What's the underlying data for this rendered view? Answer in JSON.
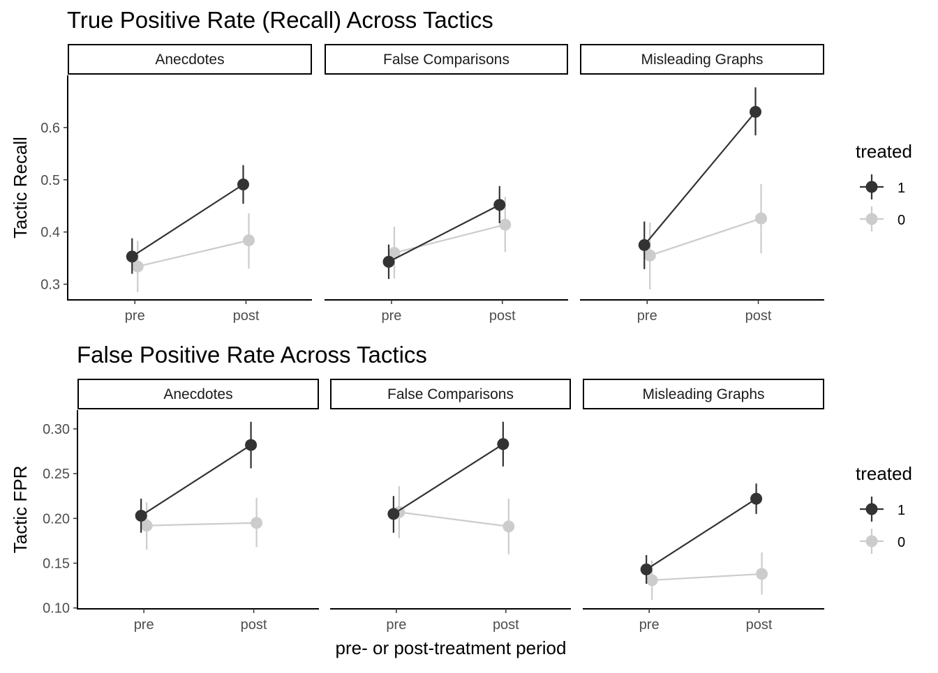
{
  "x_axis_label": "pre- or post-treatment period",
  "chart_data": [
    {
      "type": "line",
      "title": "True Positive Rate (Recall) Across Tactics",
      "ylabel": "Tactic Recall",
      "xlabel": "",
      "categories": [
        "pre",
        "post"
      ],
      "y_ticks": [
        "0.3",
        "0.4",
        "0.5",
        "0.6"
      ],
      "ylim": [
        0.27,
        0.7
      ],
      "legend_title": "treated",
      "legend_position": "right",
      "grid": false,
      "panels": [
        {
          "facet": "Anecdotes",
          "series": [
            {
              "name": "1",
              "color": "#333333",
              "values": [
                0.353,
                0.491
              ],
              "lower": [
                0.32,
                0.454
              ],
              "upper": [
                0.388,
                0.528
              ]
            },
            {
              "name": "0",
              "color": "#cccccc",
              "values": [
                0.334,
                0.384
              ],
              "lower": [
                0.285,
                0.33
              ],
              "upper": [
                0.383,
                0.436
              ]
            }
          ]
        },
        {
          "facet": "False Comparisons",
          "series": [
            {
              "name": "1",
              "color": "#333333",
              "values": [
                0.343,
                0.452
              ],
              "lower": [
                0.31,
                0.417
              ],
              "upper": [
                0.376,
                0.488
              ]
            },
            {
              "name": "0",
              "color": "#cccccc",
              "values": [
                0.36,
                0.414
              ],
              "lower": [
                0.311,
                0.362
              ],
              "upper": [
                0.41,
                0.467
              ]
            }
          ]
        },
        {
          "facet": "Misleading Graphs",
          "series": [
            {
              "name": "1",
              "color": "#333333",
              "values": [
                0.375,
                0.63
              ],
              "lower": [
                0.329,
                0.585
              ],
              "upper": [
                0.42,
                0.677
              ]
            },
            {
              "name": "0",
              "color": "#cccccc",
              "values": [
                0.355,
                0.426
              ],
              "lower": [
                0.29,
                0.359
              ],
              "upper": [
                0.418,
                0.492
              ]
            }
          ]
        }
      ]
    },
    {
      "type": "line",
      "title": "False Positive Rate Across Tactics",
      "ylabel": "Tactic FPR",
      "xlabel": "pre- or post-treatment period",
      "categories": [
        "pre",
        "post"
      ],
      "y_ticks": [
        "0.10",
        "0.15",
        "0.20",
        "0.25",
        "0.30"
      ],
      "ylim": [
        0.099,
        0.321
      ],
      "legend_title": "treated",
      "legend_position": "right",
      "grid": false,
      "panels": [
        {
          "facet": "Anecdotes",
          "series": [
            {
              "name": "1",
              "color": "#333333",
              "values": [
                0.203,
                0.282
              ],
              "lower": [
                0.184,
                0.256
              ],
              "upper": [
                0.222,
                0.308
              ]
            },
            {
              "name": "0",
              "color": "#cccccc",
              "values": [
                0.192,
                0.195
              ],
              "lower": [
                0.165,
                0.168
              ],
              "upper": [
                0.218,
                0.223
              ]
            }
          ]
        },
        {
          "facet": "False Comparisons",
          "series": [
            {
              "name": "1",
              "color": "#333333",
              "values": [
                0.205,
                0.283
              ],
              "lower": [
                0.184,
                0.258
              ],
              "upper": [
                0.225,
                0.308
              ]
            },
            {
              "name": "0",
              "color": "#cccccc",
              "values": [
                0.207,
                0.191
              ],
              "lower": [
                0.178,
                0.16
              ],
              "upper": [
                0.236,
                0.222
              ]
            }
          ]
        },
        {
          "facet": "Misleading Graphs",
          "series": [
            {
              "name": "1",
              "color": "#333333",
              "values": [
                0.143,
                0.222
              ],
              "lower": [
                0.127,
                0.205
              ],
              "upper": [
                0.159,
                0.239
              ]
            },
            {
              "name": "0",
              "color": "#cccccc",
              "values": [
                0.131,
                0.138
              ],
              "lower": [
                0.109,
                0.115
              ],
              "upper": [
                0.153,
                0.162
              ]
            }
          ]
        }
      ]
    }
  ]
}
